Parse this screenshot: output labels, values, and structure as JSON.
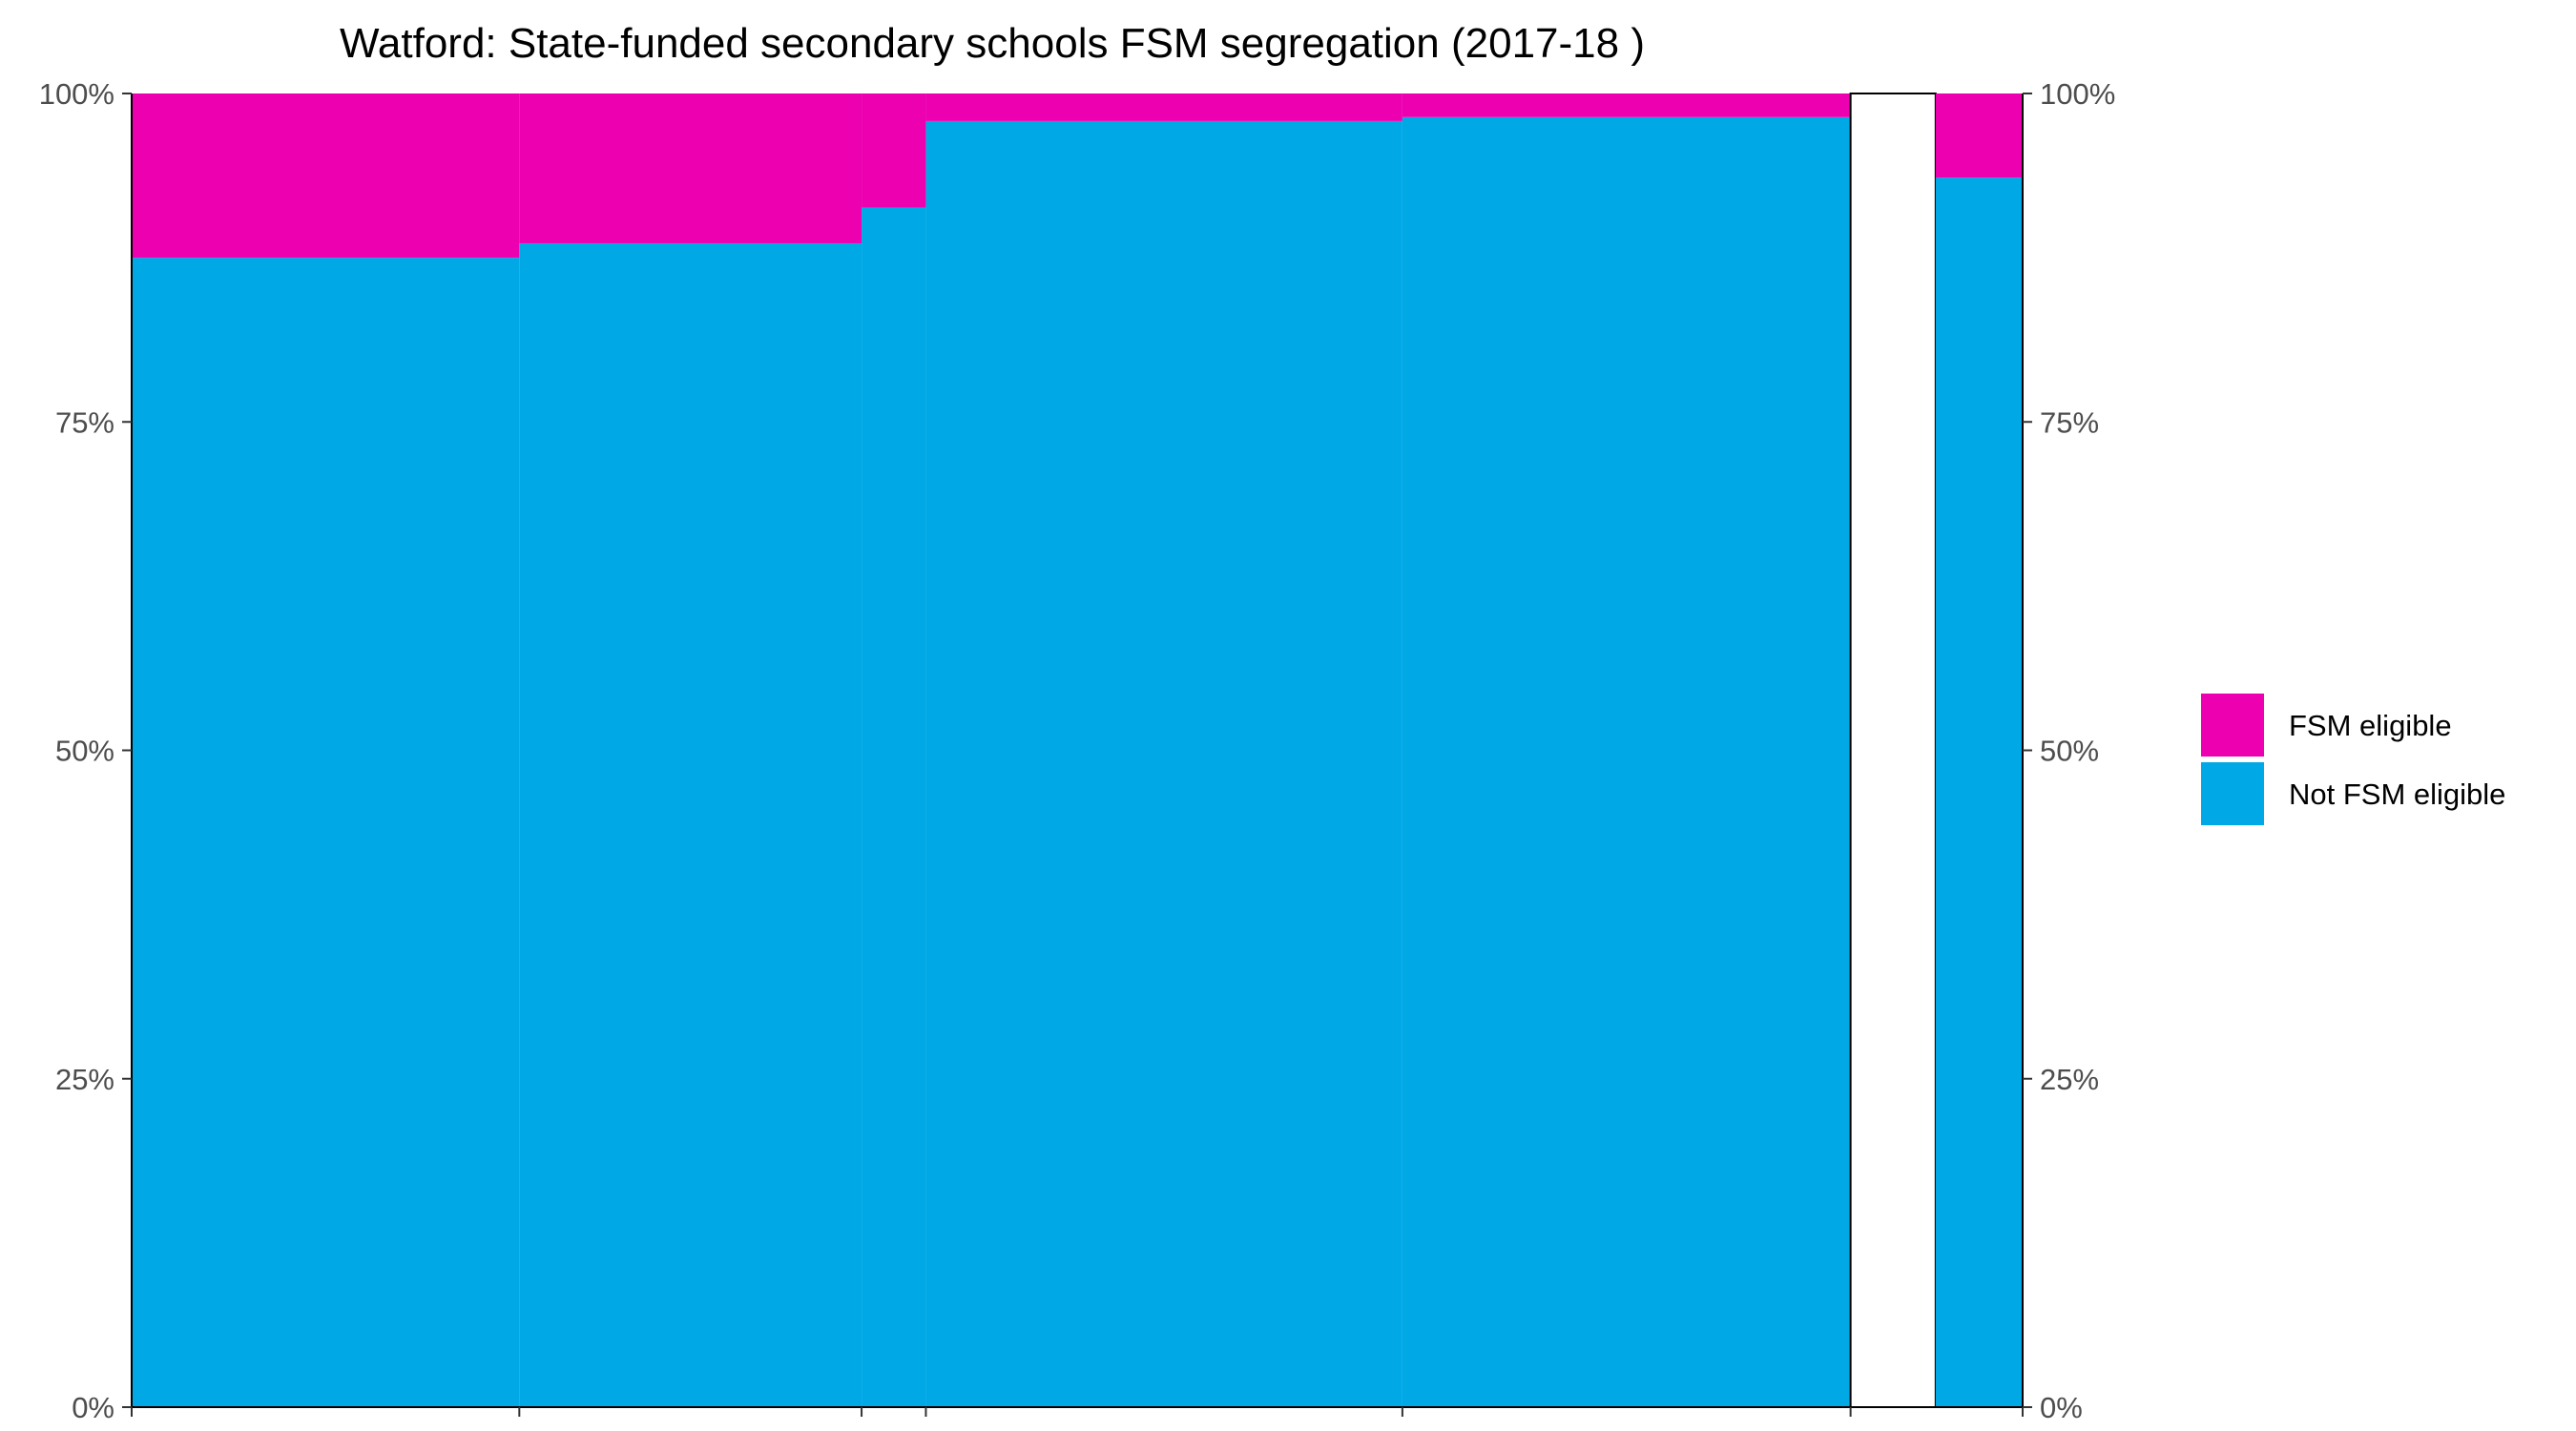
{
  "chart_data": {
    "type": "bar",
    "subtype": "marimekko",
    "title": "Watford: State-funded secondary schools FSM segregation (2017-18 )",
    "xlabel": "",
    "ylabel": "",
    "ylim": [
      0,
      100
    ],
    "y_ticks": [
      "0%",
      "25%",
      "50%",
      "75%",
      "100%"
    ],
    "y_tick_values": [
      0,
      25,
      50,
      75,
      100
    ],
    "y_axes": [
      "left",
      "right"
    ],
    "grid": false,
    "legend_position": "right",
    "colors": {
      "fsm": "#EC00B0",
      "not_fsm": "#00A8E6"
    },
    "legend": [
      {
        "key": "fsm",
        "label": "FSM eligible"
      },
      {
        "key": "not_fsm",
        "label": "Not FSM eligible"
      }
    ],
    "segments": [
      {
        "width": 20.5,
        "not_fsm": 87.5,
        "fsm": 12.5
      },
      {
        "width": 18.1,
        "not_fsm": 88.6,
        "fsm": 11.4
      },
      {
        "width": 3.4,
        "not_fsm": 91.3,
        "fsm": 8.7
      },
      {
        "width": 25.2,
        "not_fsm": 97.9,
        "fsm": 2.1
      },
      {
        "width": 23.7,
        "not_fsm": 98.2,
        "fsm": 1.8
      },
      {
        "width": 4.5,
        "not_fsm": null,
        "fsm": null,
        "empty": true
      },
      {
        "width": 4.6,
        "not_fsm": 93.6,
        "fsm": 6.4
      }
    ]
  }
}
